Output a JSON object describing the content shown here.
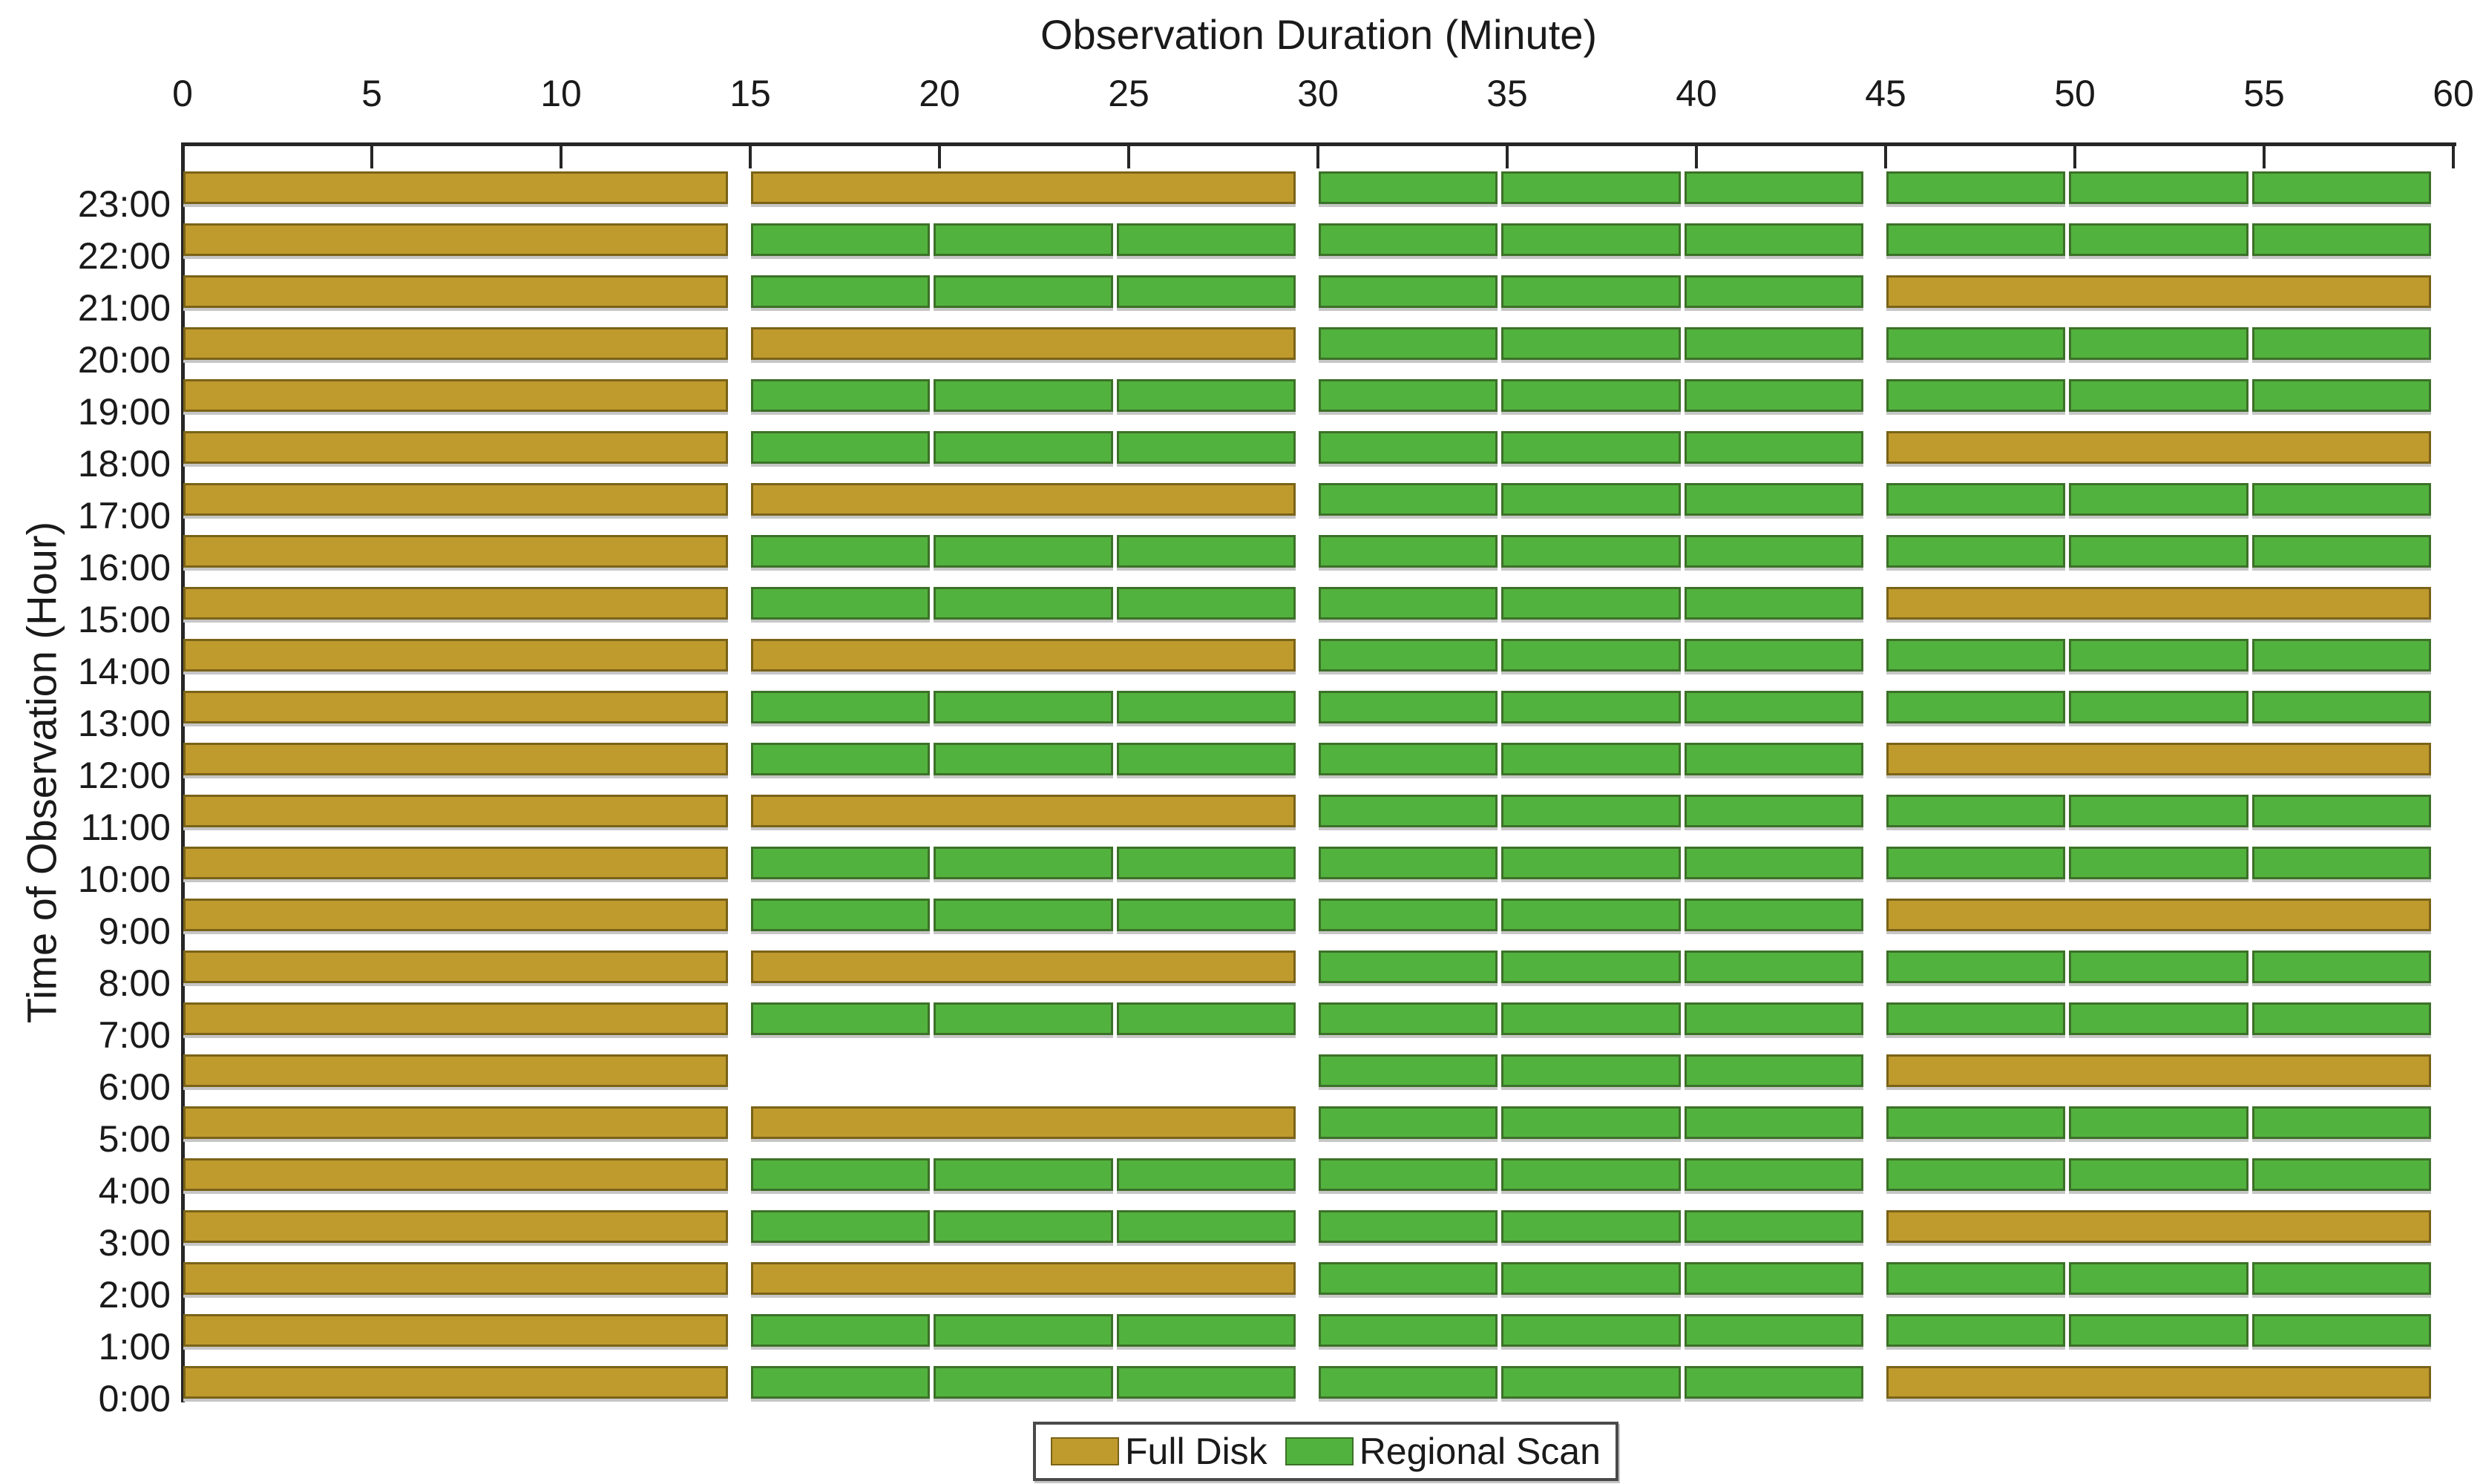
{
  "page": {
    "background": "#ffffff"
  },
  "chart_data": {
    "type": "gantt",
    "title": "Observation Duration (Minute)",
    "x_axis": {
      "label": "Observation Duration (Minute)",
      "min": 0,
      "max": 60,
      "tick_interval": 5,
      "ticks": [
        "0",
        "5",
        "10",
        "15",
        "20",
        "25",
        "30",
        "35",
        "40",
        "45",
        "50",
        "55",
        "60"
      ],
      "position": "top"
    },
    "y_axis": {
      "label": "Time of Observation (Hour)",
      "categories": [
        "23:00",
        "22:00",
        "21:00",
        "20:00",
        "19:00",
        "18:00",
        "17:00",
        "16:00",
        "15:00",
        "14:00",
        "13:00",
        "12:00",
        "11:00",
        "10:00",
        "9:00",
        "8:00",
        "7:00",
        "6:00",
        "5:00",
        "4:00",
        "3:00",
        "2:00",
        "1:00",
        "0:00"
      ]
    },
    "legend": [
      {
        "name": "Full Disk",
        "type": "full_disk",
        "color": "#BF9A2D",
        "edge_color": "#7A6318"
      },
      {
        "name": "Regional Scan",
        "type": "regional_scan",
        "color": "#52B23E",
        "edge_color": "#3C7128"
      }
    ],
    "legend_position": "bottom-center",
    "grid": false,
    "quarter_starts_min": [
      0,
      15,
      30,
      45
    ],
    "quarter_duration_min": 14.4,
    "regional_scan_segments_per_quarter": 3,
    "rows": [
      {
        "hour": "23:00",
        "quarters": [
          "full_disk",
          "full_disk",
          "regional_scan",
          "regional_scan"
        ]
      },
      {
        "hour": "22:00",
        "quarters": [
          "full_disk",
          "regional_scan",
          "regional_scan",
          "regional_scan"
        ]
      },
      {
        "hour": "21:00",
        "quarters": [
          "full_disk",
          "regional_scan",
          "regional_scan",
          "full_disk"
        ]
      },
      {
        "hour": "20:00",
        "quarters": [
          "full_disk",
          "full_disk",
          "regional_scan",
          "regional_scan"
        ]
      },
      {
        "hour": "19:00",
        "quarters": [
          "full_disk",
          "regional_scan",
          "regional_scan",
          "regional_scan"
        ]
      },
      {
        "hour": "18:00",
        "quarters": [
          "full_disk",
          "regional_scan",
          "regional_scan",
          "full_disk"
        ]
      },
      {
        "hour": "17:00",
        "quarters": [
          "full_disk",
          "full_disk",
          "regional_scan",
          "regional_scan"
        ]
      },
      {
        "hour": "16:00",
        "quarters": [
          "full_disk",
          "regional_scan",
          "regional_scan",
          "regional_scan"
        ]
      },
      {
        "hour": "15:00",
        "quarters": [
          "full_disk",
          "regional_scan",
          "regional_scan",
          "full_disk"
        ]
      },
      {
        "hour": "14:00",
        "quarters": [
          "full_disk",
          "full_disk",
          "regional_scan",
          "regional_scan"
        ]
      },
      {
        "hour": "13:00",
        "quarters": [
          "full_disk",
          "regional_scan",
          "regional_scan",
          "regional_scan"
        ]
      },
      {
        "hour": "12:00",
        "quarters": [
          "full_disk",
          "regional_scan",
          "regional_scan",
          "full_disk"
        ]
      },
      {
        "hour": "11:00",
        "quarters": [
          "full_disk",
          "full_disk",
          "regional_scan",
          "regional_scan"
        ]
      },
      {
        "hour": "10:00",
        "quarters": [
          "full_disk",
          "regional_scan",
          "regional_scan",
          "regional_scan"
        ]
      },
      {
        "hour": "9:00",
        "quarters": [
          "full_disk",
          "regional_scan",
          "regional_scan",
          "full_disk"
        ]
      },
      {
        "hour": "8:00",
        "quarters": [
          "full_disk",
          "full_disk",
          "regional_scan",
          "regional_scan"
        ]
      },
      {
        "hour": "7:00",
        "quarters": [
          "full_disk",
          "regional_scan",
          "regional_scan",
          "regional_scan"
        ]
      },
      {
        "hour": "6:00",
        "quarters": [
          "full_disk",
          null,
          "regional_scan",
          "full_disk"
        ]
      },
      {
        "hour": "5:00",
        "quarters": [
          "full_disk",
          "full_disk",
          "regional_scan",
          "regional_scan"
        ]
      },
      {
        "hour": "4:00",
        "quarters": [
          "full_disk",
          "regional_scan",
          "regional_scan",
          "regional_scan"
        ]
      },
      {
        "hour": "3:00",
        "quarters": [
          "full_disk",
          "regional_scan",
          "regional_scan",
          "full_disk"
        ]
      },
      {
        "hour": "2:00",
        "quarters": [
          "full_disk",
          "full_disk",
          "regional_scan",
          "regional_scan"
        ]
      },
      {
        "hour": "1:00",
        "quarters": [
          "full_disk",
          "regional_scan",
          "regional_scan",
          "regional_scan"
        ]
      },
      {
        "hour": "0:00",
        "quarters": [
          "full_disk",
          "regional_scan",
          "regional_scan",
          "full_disk"
        ]
      }
    ]
  }
}
